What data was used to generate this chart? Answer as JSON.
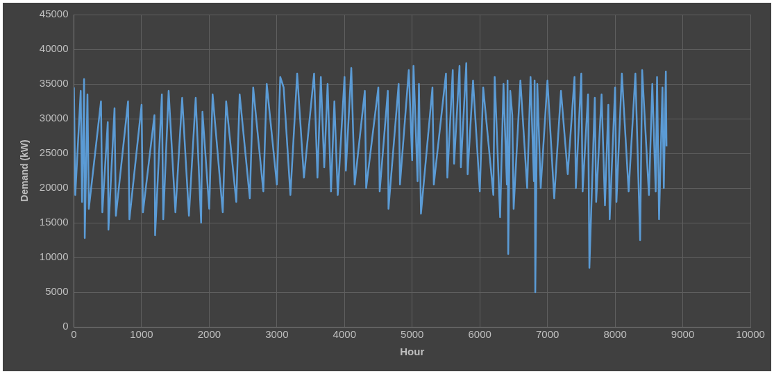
{
  "chart_data": {
    "type": "line",
    "xlabel": "Hour",
    "ylabel": "Demand (kW)",
    "xlim": [
      0,
      10000
    ],
    "xticks": [
      0,
      1000,
      2000,
      3000,
      4000,
      5000,
      6000,
      7000,
      8000,
      9000,
      10000
    ],
    "ylim": [
      0,
      45000
    ],
    "yticks": [
      0,
      5000,
      10000,
      15000,
      20000,
      25000,
      30000,
      35000,
      40000,
      45000
    ],
    "grid": true,
    "legend": false,
    "marker": "none",
    "line_style": "solid",
    "series": [
      {
        "color": "#5b9bd5",
        "x": [
          0,
          20,
          100,
          120,
          150,
          160,
          200,
          220,
          400,
          420,
          500,
          510,
          600,
          620,
          800,
          820,
          1000,
          1020,
          1190,
          1200,
          1300,
          1320,
          1400,
          1500,
          1600,
          1700,
          1800,
          1880,
          1900,
          2000,
          2050,
          2200,
          2250,
          2400,
          2450,
          2600,
          2650,
          2800,
          2850,
          3000,
          3050,
          3100,
          3200,
          3300,
          3400,
          3550,
          3600,
          3650,
          3700,
          3750,
          3800,
          3850,
          3900,
          4000,
          4020,
          4100,
          4150,
          4300,
          4320,
          4500,
          4520,
          4640,
          4650,
          4800,
          4820,
          4950,
          5000,
          5020,
          5080,
          5100,
          5130,
          5300,
          5320,
          5500,
          5520,
          5600,
          5620,
          5700,
          5720,
          5800,
          5820,
          5900,
          6000,
          6050,
          6200,
          6220,
          6300,
          6350,
          6400,
          6410,
          6420,
          6450,
          6480,
          6500,
          6600,
          6700,
          6750,
          6800,
          6810,
          6820,
          6850,
          6900,
          7000,
          7100,
          7200,
          7300,
          7400,
          7420,
          7500,
          7520,
          7600,
          7620,
          7700,
          7720,
          7800,
          7850,
          7900,
          7920,
          8000,
          8020,
          8100,
          8200,
          8300,
          8370,
          8400,
          8500,
          8550,
          8600,
          8620,
          8650,
          8700,
          8720,
          8750,
          8760
        ],
        "values": [
          34500,
          19000,
          34000,
          18000,
          35700,
          12800,
          33500,
          17000,
          32500,
          16500,
          29500,
          14000,
          31500,
          16000,
          32500,
          15500,
          32000,
          16500,
          30500,
          13200,
          33500,
          15500,
          34000,
          16500,
          33000,
          16000,
          33000,
          15000,
          31000,
          17000,
          33500,
          16500,
          32500,
          18000,
          33500,
          18500,
          34500,
          19500,
          35000,
          20500,
          36000,
          34500,
          19000,
          36500,
          21500,
          36500,
          21500,
          36000,
          23000,
          35000,
          19500,
          32500,
          19000,
          36000,
          22500,
          37300,
          20500,
          34000,
          20000,
          34500,
          19500,
          34000,
          17000,
          35000,
          20500,
          37000,
          24000,
          37600,
          21000,
          35000,
          16300,
          34500,
          20500,
          36500,
          21500,
          37000,
          23500,
          37600,
          23000,
          38000,
          22000,
          35500,
          19500,
          34500,
          19000,
          36000,
          15800,
          35000,
          20500,
          35500,
          10500,
          34000,
          30500,
          17000,
          35500,
          20000,
          36000,
          21000,
          35500,
          5000,
          35000,
          20000,
          35500,
          18500,
          34000,
          22000,
          36000,
          20000,
          36500,
          19500,
          33500,
          8500,
          33000,
          18000,
          33500,
          17500,
          32000,
          15500,
          34500,
          18000,
          36500,
          19500,
          36500,
          12500,
          37000,
          19000,
          35000,
          19500,
          36000,
          15500,
          34500,
          20000,
          36800,
          26000
        ]
      }
    ]
  }
}
